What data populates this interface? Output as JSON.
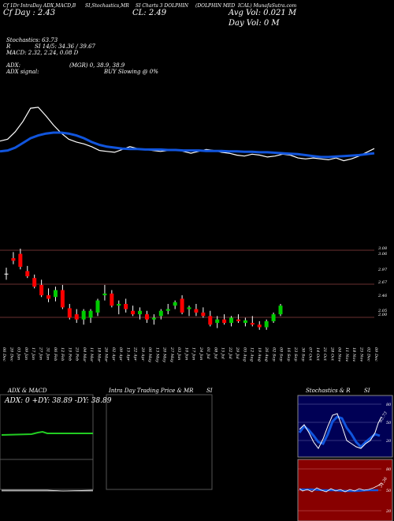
{
  "header": {
    "line1_left": "Cf 1Dr IntraDay ADX,MACD,B",
    "line1_mid": "SI,Stochastics,MR",
    "line1_mid2": "SI Charts 3 DOLPHIN",
    "line1_right": "(DOLPHIN MED",
    "line1_right2": "ICAL) MunafaSutra.com",
    "chg_text": "Cf Day : 2.43",
    "close_text": "CL: 2.49",
    "avg_vol": "Avg Vol: 0.021  M",
    "day_vol": "Day Vol: 0   M"
  },
  "stats": {
    "stochastics": "Stochastics: 63.73",
    "si": "SI 14/5: 34.36  / 39.67",
    "si_prefix": "R",
    "macd": "MACD: 2.32, 2.24, 0.08  D",
    "adx": "ADX:",
    "adx_values": "(MGR) 0, 38.9, 38.9",
    "adx_signal": "ADX  signal:",
    "buy_text": "BUY Slowing @ 0%"
  },
  "chart_data": {
    "type": "candlestick",
    "price_ticks": [
      "3.08",
      "3.06",
      "2.97",
      "2.67",
      "2.46",
      "2.05",
      "2.00"
    ],
    "date_labels": [
      "06 Dec",
      "20 Dec",
      "03 Jan",
      "09 Jan",
      "17 Jan",
      "27 Jan",
      "31 Jan",
      "06 Feb",
      "12 Feb",
      "19 Feb",
      "25 Feb",
      "04 Mar",
      "11 Mar",
      "18 Mar",
      "26 Mar",
      "02 Apr",
      "09 Apr",
      "15 Apr",
      "22 Apr",
      "29 Apr",
      "06 May",
      "13 May",
      "20 May",
      "27 May",
      "03 Jun",
      "10 Jun",
      "17 Jun",
      "24 Jun",
      "01 Jul",
      "08 Jul",
      "15 Jul",
      "22 Jul",
      "29 Jul",
      "05 Aug",
      "12 Aug",
      "19 Aug",
      "26 Aug",
      "02 Sep",
      "09 Sep",
      "16 Sep",
      "23 Sep",
      "30 Sep",
      "07 Oct",
      "14 Oct",
      "21 Oct",
      "28 Oct",
      "04 Nov",
      "11 Nov",
      "18 Nov",
      "25 Nov",
      "02 Dec",
      "09 Dec"
    ],
    "candles": [
      {
        "o": 2.87,
        "h": 2.94,
        "l": 2.8,
        "c": 2.87
      },
      {
        "o": 3.05,
        "h": 3.12,
        "l": 2.98,
        "c": 3.02
      },
      {
        "o": 3.1,
        "h": 3.16,
        "l": 2.92,
        "c": 2.95
      },
      {
        "o": 2.9,
        "h": 2.96,
        "l": 2.82,
        "c": 2.84
      },
      {
        "o": 2.82,
        "h": 2.86,
        "l": 2.7,
        "c": 2.72
      },
      {
        "o": 2.74,
        "h": 2.8,
        "l": 2.6,
        "c": 2.62
      },
      {
        "o": 2.62,
        "h": 2.7,
        "l": 2.54,
        "c": 2.58
      },
      {
        "o": 2.6,
        "h": 2.72,
        "l": 2.55,
        "c": 2.68
      },
      {
        "o": 2.68,
        "h": 2.74,
        "l": 2.46,
        "c": 2.48
      },
      {
        "o": 2.47,
        "h": 2.52,
        "l": 2.34,
        "c": 2.36
      },
      {
        "o": 2.4,
        "h": 2.46,
        "l": 2.3,
        "c": 2.34
      },
      {
        "o": 2.34,
        "h": 2.46,
        "l": 2.28,
        "c": 2.44
      },
      {
        "o": 2.36,
        "h": 2.46,
        "l": 2.3,
        "c": 2.44
      },
      {
        "o": 2.42,
        "h": 2.58,
        "l": 2.38,
        "c": 2.56
      },
      {
        "o": 2.62,
        "h": 2.74,
        "l": 2.56,
        "c": 2.64
      },
      {
        "o": 2.64,
        "h": 2.68,
        "l": 2.48,
        "c": 2.5
      },
      {
        "o": 2.5,
        "h": 2.56,
        "l": 2.4,
        "c": 2.52
      },
      {
        "o": 2.52,
        "h": 2.58,
        "l": 2.42,
        "c": 2.46
      },
      {
        "o": 2.44,
        "h": 2.5,
        "l": 2.38,
        "c": 2.4
      },
      {
        "o": 2.4,
        "h": 2.48,
        "l": 2.34,
        "c": 2.44
      },
      {
        "o": 2.4,
        "h": 2.44,
        "l": 2.3,
        "c": 2.34
      },
      {
        "o": 2.34,
        "h": 2.4,
        "l": 2.28,
        "c": 2.36
      },
      {
        "o": 2.38,
        "h": 2.46,
        "l": 2.34,
        "c": 2.44
      },
      {
        "o": 2.44,
        "h": 2.52,
        "l": 2.4,
        "c": 2.46
      },
      {
        "o": 2.5,
        "h": 2.56,
        "l": 2.46,
        "c": 2.54
      },
      {
        "o": 2.58,
        "h": 2.62,
        "l": 2.4,
        "c": 2.42
      },
      {
        "o": 2.46,
        "h": 2.5,
        "l": 2.38,
        "c": 2.48
      },
      {
        "o": 2.46,
        "h": 2.52,
        "l": 2.38,
        "c": 2.42
      },
      {
        "o": 2.42,
        "h": 2.48,
        "l": 2.36,
        "c": 2.38
      },
      {
        "o": 2.38,
        "h": 2.44,
        "l": 2.26,
        "c": 2.28
      },
      {
        "o": 2.3,
        "h": 2.38,
        "l": 2.24,
        "c": 2.34
      },
      {
        "o": 2.34,
        "h": 2.4,
        "l": 2.28,
        "c": 2.3
      },
      {
        "o": 2.3,
        "h": 2.38,
        "l": 2.26,
        "c": 2.36
      },
      {
        "o": 2.34,
        "h": 2.4,
        "l": 2.3,
        "c": 2.32
      },
      {
        "o": 2.3,
        "h": 2.36,
        "l": 2.26,
        "c": 2.33
      },
      {
        "o": 2.3,
        "h": 2.38,
        "l": 2.26,
        "c": 2.28
      },
      {
        "o": 2.28,
        "h": 2.32,
        "l": 2.22,
        "c": 2.25
      },
      {
        "o": 2.25,
        "h": 2.34,
        "l": 2.22,
        "c": 2.32
      },
      {
        "o": 2.32,
        "h": 2.42,
        "l": 2.3,
        "c": 2.4
      },
      {
        "o": 2.4,
        "h": 2.52,
        "l": 2.38,
        "c": 2.5
      }
    ],
    "indicator": {
      "white_line": [
        78,
        82,
        98,
        120,
        148,
        150,
        132,
        112,
        95,
        82,
        76,
        72,
        66,
        58,
        56,
        54,
        60,
        66,
        62,
        60,
        58,
        56,
        58,
        60,
        56,
        52,
        56,
        60,
        58,
        54,
        52,
        48,
        46,
        50,
        48,
        44,
        46,
        50,
        48,
        42,
        40,
        42,
        40,
        38,
        42,
        36,
        40,
        46,
        54,
        62
      ],
      "blue_line": [
        56,
        58,
        64,
        74,
        84,
        90,
        94,
        96,
        96,
        94,
        90,
        84,
        76,
        70,
        66,
        64,
        62,
        61,
        61,
        60,
        60,
        60,
        59,
        59,
        58,
        58,
        58,
        57,
        57,
        57,
        56,
        56,
        55,
        55,
        54,
        54,
        53,
        52,
        51,
        50,
        48,
        46,
        44,
        44,
        45,
        46,
        47,
        48,
        50,
        52
      ]
    }
  },
  "panels": {
    "adx_title": "ADX  & MACD",
    "adx_readout": "ADX: 0  +DY: 38.89  -DY: 38.89",
    "intraday_title": "Intra Day Trading Price  & MR",
    "intraday_si": "SI",
    "stoch_title": "Stochastics & R",
    "stoch_si": "SI",
    "stoch_ticks": [
      "80",
      "50",
      "20"
    ],
    "stoch_value": "63.73",
    "rsi_ticks": [
      "80",
      "50",
      "20"
    ],
    "rsi_value": "34.36"
  },
  "colors": {
    "up": "#00cc00",
    "down": "#ff0000",
    "neutral": "#ffffff",
    "blue": "#1155dd",
    "stoch_bg": "#000055",
    "rsi_bg": "#880000",
    "adx_line": "#22cc22"
  }
}
